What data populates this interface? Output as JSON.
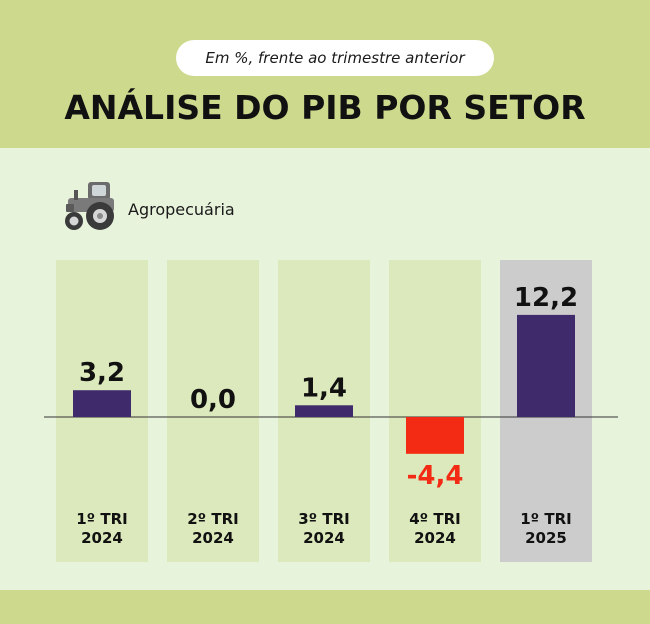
{
  "header": {
    "subtitle": "Em %, frente ao trimestre anterior",
    "title": "ANÁLISE DO PIB POR SETOR"
  },
  "sector": {
    "label": "Agropecuária",
    "icon": "tractor-icon"
  },
  "colors": {
    "header_bg": "#cdd98c",
    "page_bg": "#e8f3dc",
    "column_bg": "#dce9bc",
    "highlight_column_bg": "#cccccc",
    "positive_bar": "#3f2a6b",
    "negative_bar": "#f42b14",
    "positive_text": "#111111",
    "negative_text": "#f42b14"
  },
  "chart_data": {
    "type": "bar",
    "categories": [
      "1º TRI\n2024",
      "2º TRI\n2024",
      "3º TRI\n2024",
      "4º TRI\n2024",
      "1º TRI\n2025"
    ],
    "values": [
      3.2,
      0.0,
      1.4,
      -4.4,
      12.2
    ],
    "value_labels": [
      "3,2",
      "0,0",
      "1,4",
      "-4,4",
      "12,2"
    ],
    "highlighted_index": 4,
    "title": "ANÁLISE DO PIB POR SETOR",
    "subtitle": "Em %, frente ao trimestre anterior",
    "xlabel": "",
    "ylabel": "",
    "grid": false,
    "legend": "none"
  }
}
